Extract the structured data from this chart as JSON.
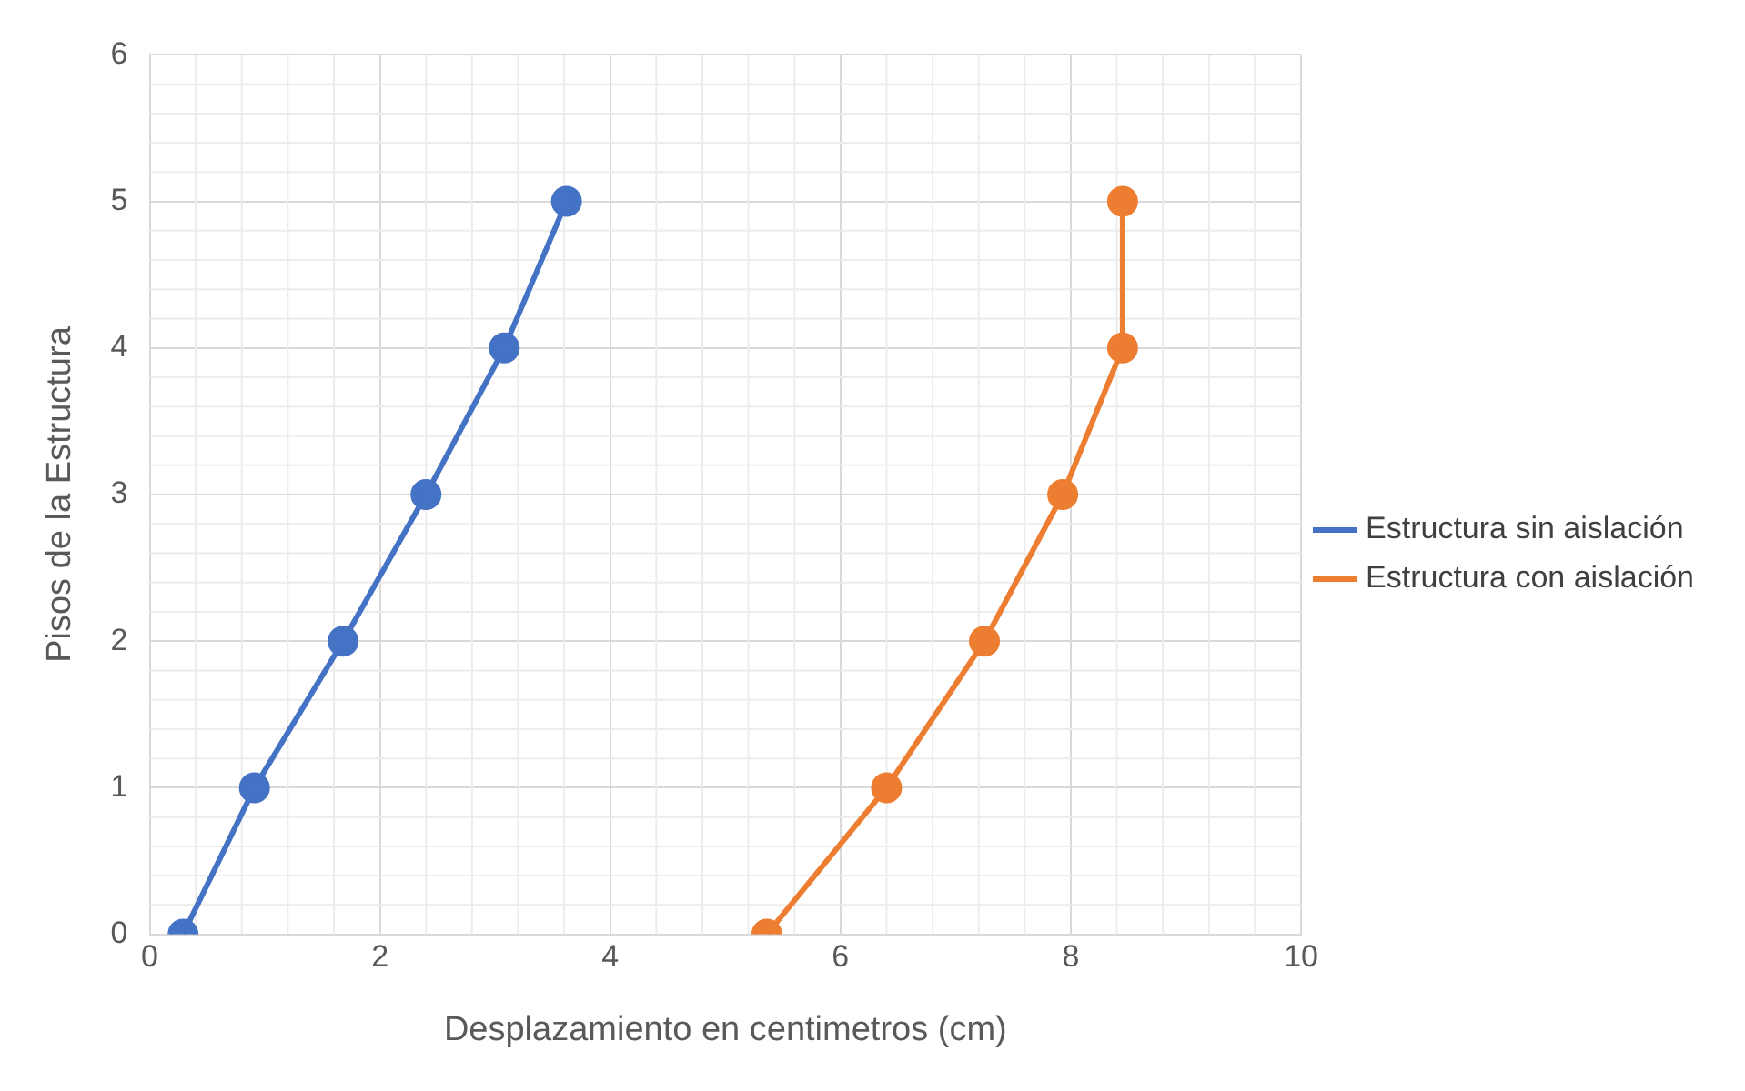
{
  "chart_data": {
    "type": "line",
    "xlabel": "Desplazamiento en centimetros (cm)",
    "ylabel": "Pisos de la Estructura",
    "xlim": [
      0,
      10
    ],
    "xticks": [
      0,
      2,
      4,
      6,
      8,
      10
    ],
    "ylim": [
      0,
      6
    ],
    "yticks": [
      0,
      1,
      2,
      3,
      4,
      5,
      6
    ],
    "grid": true,
    "legend": "right",
    "marker": "circle",
    "line_style": "solid",
    "series": [
      {
        "name": "Estructura sin aislación",
        "color": "#4472c4",
        "x": [
          0.29,
          0.91,
          1.68,
          2.4,
          3.08,
          3.62
        ],
        "values": [
          0,
          1,
          2,
          3,
          4,
          5
        ]
      },
      {
        "name": "Estructura con aislación",
        "color": "#ed7d31",
        "x": [
          5.36,
          6.4,
          7.25,
          7.93,
          8.45,
          8.45
        ],
        "values": [
          0,
          1,
          2,
          3,
          4,
          5
        ]
      }
    ]
  }
}
